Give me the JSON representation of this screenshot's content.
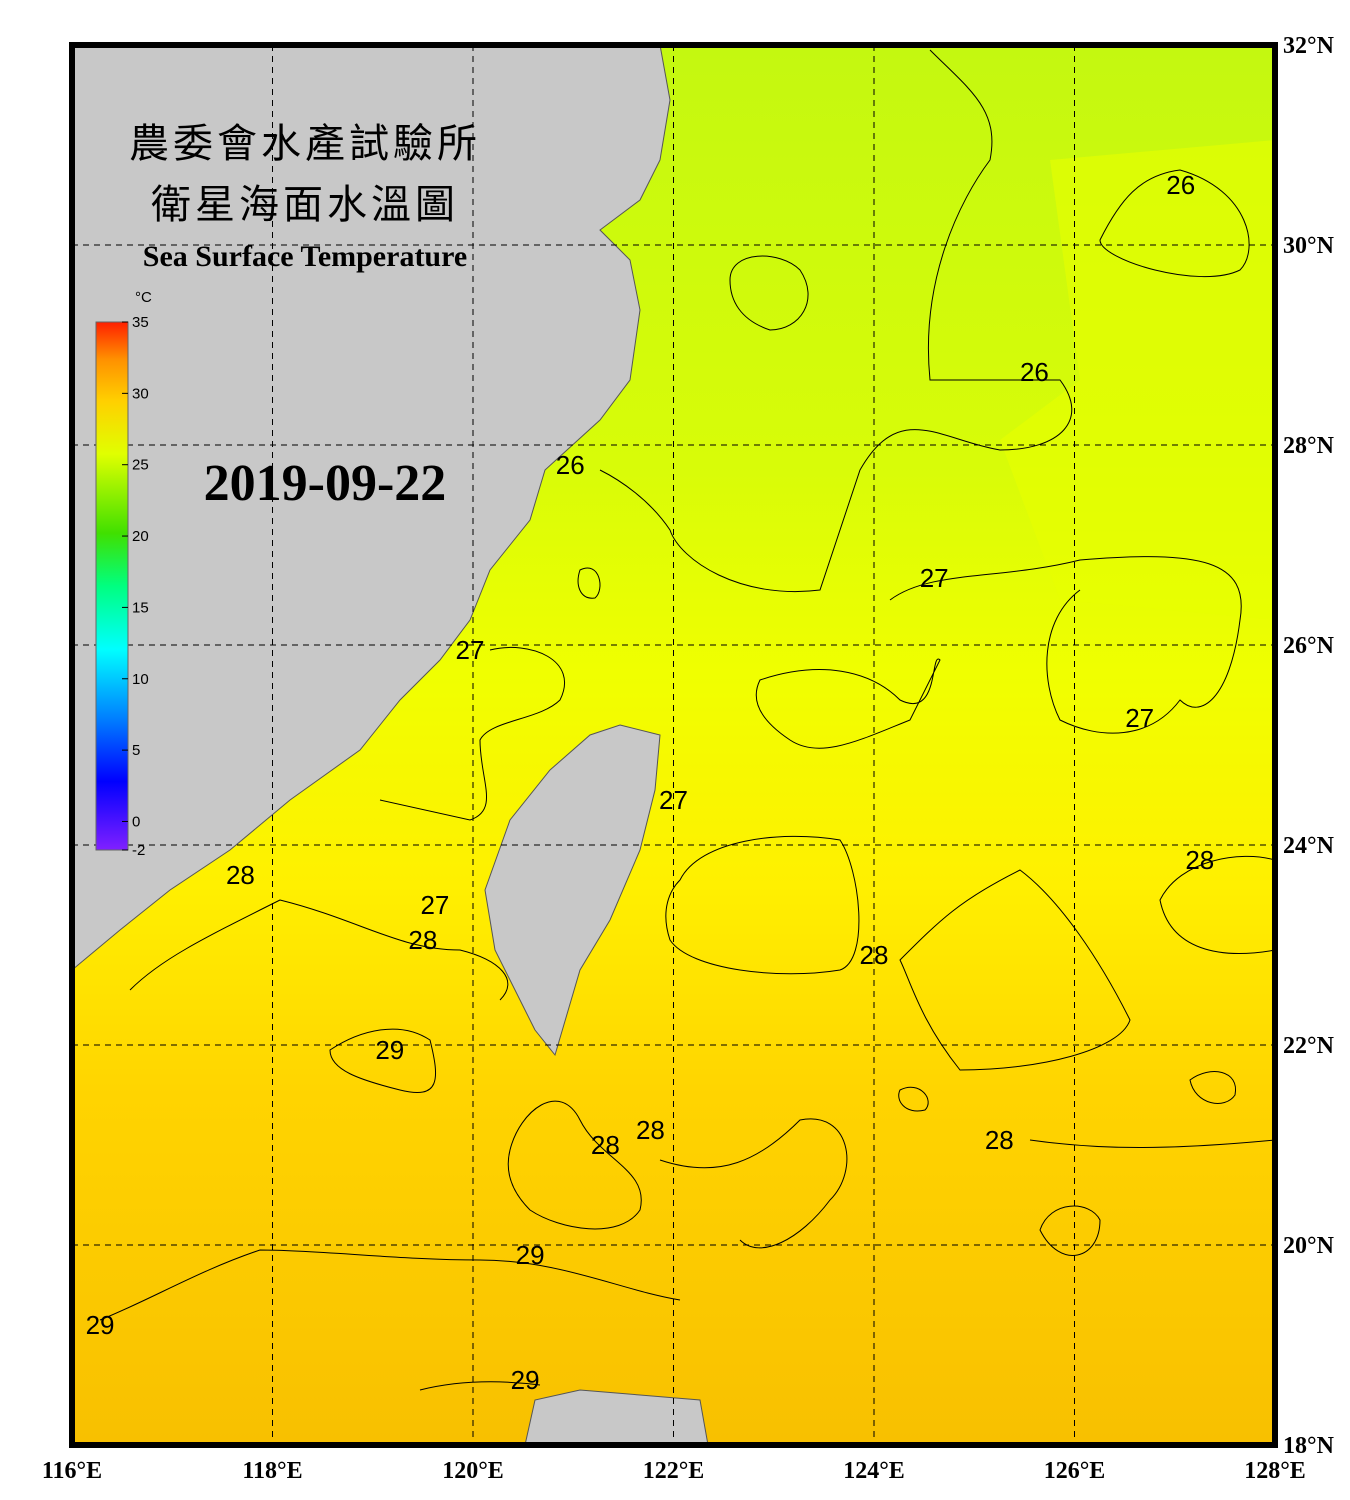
{
  "header": {
    "title_zh_1": "農委會水產試驗所",
    "title_zh_2": "衛星海面水溫圖",
    "title_en": "Sea Surface Temperature",
    "date": "2019-09-22"
  },
  "colorbar": {
    "unit": "°C",
    "range": [
      -2,
      35
    ],
    "ticks": [
      35,
      30,
      25,
      20,
      15,
      10,
      5,
      0,
      -2
    ]
  },
  "map": {
    "lonlim": [
      116,
      128
    ],
    "latlim": [
      18,
      32
    ],
    "lon_ticks": [
      {
        "value": 116,
        "label": "116°E"
      },
      {
        "value": 118,
        "label": "118°E"
      },
      {
        "value": 120,
        "label": "120°E"
      },
      {
        "value": 122,
        "label": "122°E"
      },
      {
        "value": 124,
        "label": "124°E"
      },
      {
        "value": 126,
        "label": "126°E"
      },
      {
        "value": 128,
        "label": "128°E"
      }
    ],
    "lat_ticks": [
      {
        "value": 32,
        "label": "32°N"
      },
      {
        "value": 30,
        "label": "30°N"
      },
      {
        "value": 28,
        "label": "28°N"
      },
      {
        "value": 26,
        "label": "26°N"
      },
      {
        "value": 24,
        "label": "24°N"
      },
      {
        "value": 22,
        "label": "22°N"
      },
      {
        "value": 20,
        "label": "20°N"
      },
      {
        "value": 18,
        "label": "18°N"
      }
    ],
    "contour_labels": [
      {
        "value": 26,
        "lon": 127.06,
        "lat": 30.6
      },
      {
        "value": 26,
        "lon": 125.6,
        "lat": 28.73
      },
      {
        "value": 26,
        "lon": 120.97,
        "lat": 27.8
      },
      {
        "value": 27,
        "lon": 124.6,
        "lat": 26.67
      },
      {
        "value": 27,
        "lon": 119.97,
        "lat": 25.95
      },
      {
        "value": 27,
        "lon": 126.65,
        "lat": 25.27
      },
      {
        "value": 27,
        "lon": 122.0,
        "lat": 24.45
      },
      {
        "value": 28,
        "lon": 117.68,
        "lat": 23.7
      },
      {
        "value": 27,
        "lon": 119.62,
        "lat": 23.4
      },
      {
        "value": 28,
        "lon": 119.5,
        "lat": 23.05
      },
      {
        "value": 28,
        "lon": 127.25,
        "lat": 23.85
      },
      {
        "value": 28,
        "lon": 124.0,
        "lat": 22.9
      },
      {
        "value": 29,
        "lon": 119.17,
        "lat": 21.95
      },
      {
        "value": 28,
        "lon": 121.32,
        "lat": 21.0
      },
      {
        "value": 28,
        "lon": 121.77,
        "lat": 21.15
      },
      {
        "value": 28,
        "lon": 125.25,
        "lat": 21.05
      },
      {
        "value": 29,
        "lon": 120.57,
        "lat": 19.9
      },
      {
        "value": 29,
        "lon": 116.28,
        "lat": 19.2
      },
      {
        "value": 29,
        "lon": 120.52,
        "lat": 18.65
      }
    ]
  }
}
